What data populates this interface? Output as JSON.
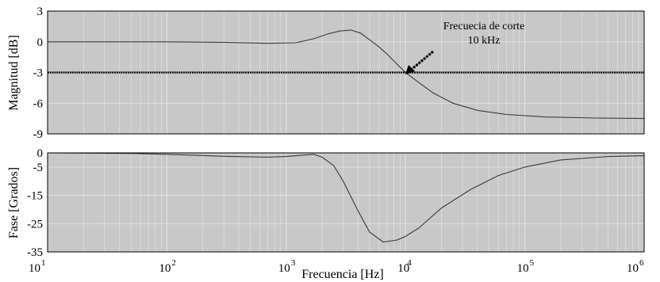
{
  "colors": {
    "plot_background": "#c8c8c8",
    "curve": "#3a3a3a",
    "grid": "#e6e6e6",
    "cutoff_line": "#000000"
  },
  "chart_data": [
    {
      "type": "line",
      "panel": "top",
      "ylabel": "Magnitud [dB]",
      "xlabel": "",
      "xscale": "log",
      "xlim": [
        10,
        1000000
      ],
      "ylim": [
        -9,
        3
      ],
      "yticks": [
        "3",
        "0",
        "-3",
        "-6",
        "-9"
      ],
      "ytick_values": [
        3,
        0,
        -3,
        -6,
        -9
      ],
      "grid": true,
      "series": [
        {
          "x": [
            10,
            30,
            100,
            300,
            700,
            1200,
            1700,
            2200,
            2800,
            3500,
            4200,
            5000,
            6000,
            7000,
            8500,
            10000,
            13000,
            17000,
            25000,
            40000,
            70000,
            150000,
            400000,
            1000000
          ],
          "values": [
            0,
            0,
            0,
            -0.05,
            -0.15,
            -0.1,
            0.3,
            0.75,
            1.05,
            1.15,
            0.85,
            0.2,
            -0.5,
            -1.2,
            -2.2,
            -3.0,
            -4.0,
            -5.0,
            -6.0,
            -6.7,
            -7.1,
            -7.35,
            -7.45,
            -7.5
          ]
        },
        {
          "x": [
            10,
            1000000
          ],
          "values": [
            -3,
            -3
          ]
        }
      ],
      "annotations": [
        {
          "text": "Frecuecia de corte",
          "x": 10000,
          "y": -3
        },
        {
          "text": "10 kHz",
          "x": 10000,
          "y": -3
        }
      ]
    },
    {
      "type": "line",
      "panel": "bottom",
      "ylabel": "Fase [Grados]",
      "xlabel": "Frecuencia [Hz]",
      "xscale": "log",
      "xlim": [
        10,
        1000000
      ],
      "ylim": [
        -35,
        0
      ],
      "yticks": [
        "0",
        "-5",
        "-15",
        "-25",
        "-35"
      ],
      "ytick_values": [
        0,
        -5,
        -15,
        -25,
        -35
      ],
      "xticks": [
        {
          "base": "10",
          "exp": "1"
        },
        {
          "base": "10",
          "exp": "2"
        },
        {
          "base": "10",
          "exp": "3"
        },
        {
          "base": "10",
          "exp": "4"
        },
        {
          "base": "10",
          "exp": "5"
        },
        {
          "base": "10",
          "exp": "6"
        }
      ],
      "xtick_values": [
        10,
        100,
        1000,
        10000,
        100000,
        1000000
      ],
      "grid": true,
      "series": [
        {
          "x": [
            10,
            50,
            100,
            300,
            700,
            1000,
            1300,
            1700,
            2000,
            2500,
            3000,
            4000,
            5000,
            6500,
            8500,
            10000,
            13000,
            20000,
            35000,
            60000,
            100000,
            200000,
            500000,
            1000000
          ],
          "values": [
            0,
            -0.2,
            -0.5,
            -1.2,
            -1.5,
            -1.3,
            -0.9,
            -0.5,
            -1.5,
            -4.5,
            -10,
            -20.5,
            -28,
            -31.5,
            -30.8,
            -29.5,
            -26.5,
            -19.5,
            -13,
            -8,
            -5,
            -2.5,
            -1.3,
            -1.0
          ]
        }
      ]
    }
  ]
}
